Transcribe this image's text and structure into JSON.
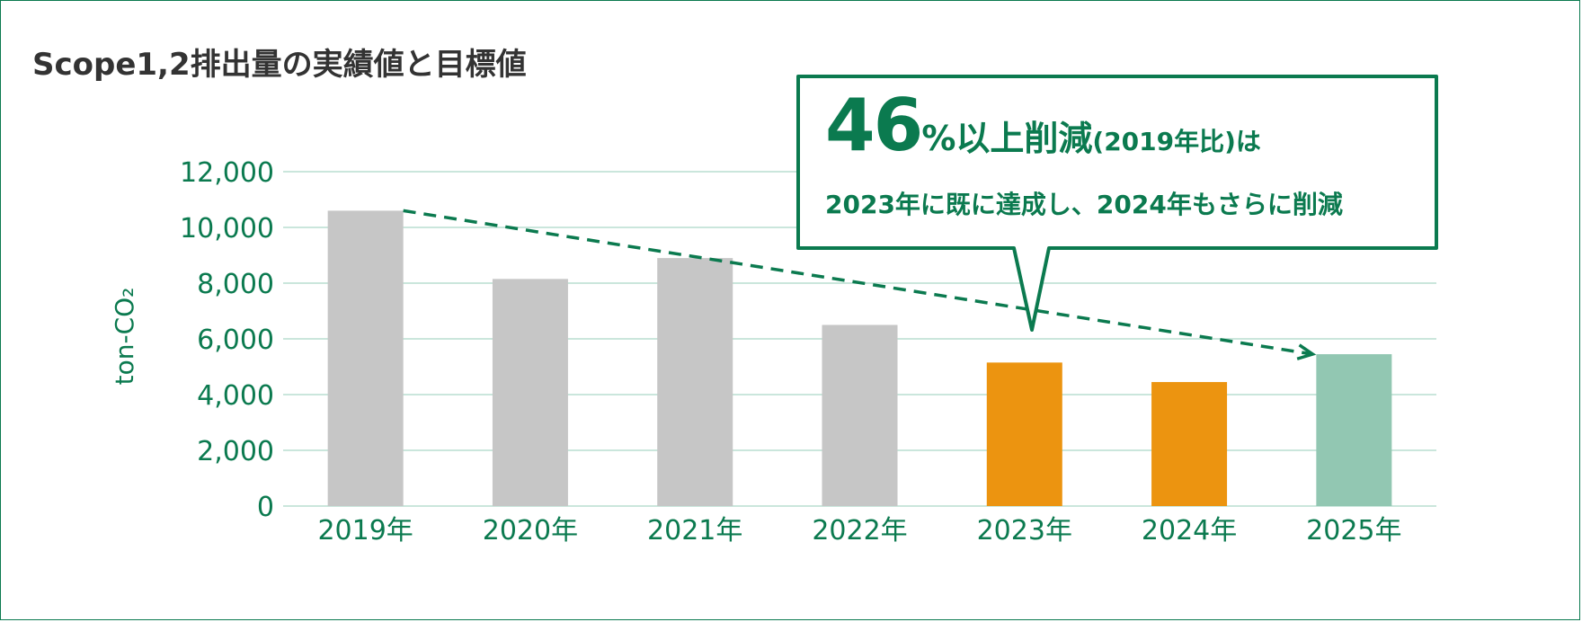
{
  "title": "Scope1,2排出量の実績値と目標値",
  "callout": {
    "big": "46",
    "mid": "%以上削減",
    "small": "(2019年比)は",
    "line2": "2023年に既に達成し、2024年もさらに削減"
  },
  "colors": {
    "accent": "#0b7a4f",
    "past": "#c6c6c6",
    "achieved": "#ec9410",
    "target": "#92c7b2",
    "grid": "#b9ddd0"
  },
  "chart_data": {
    "type": "bar",
    "categories": [
      "2019年",
      "2020年",
      "2021年",
      "2022年",
      "2023年",
      "2024年",
      "2025年"
    ],
    "values": [
      10600,
      8150,
      8900,
      6500,
      5150,
      4450,
      5450
    ],
    "bar_kinds": [
      "past",
      "past",
      "past",
      "past",
      "achieved",
      "achieved",
      "target"
    ],
    "ylabel": "ton-CO₂",
    "ylim": [
      0,
      12000
    ],
    "yticks": [
      0,
      2000,
      4000,
      6000,
      8000,
      10000,
      12000
    ],
    "ytick_labels": [
      "0",
      "2,000",
      "4,000",
      "6,000",
      "8,000",
      "10,000",
      "12,000"
    ],
    "trend_line": {
      "from": [
        "2019年",
        10600
      ],
      "to": [
        "2025年",
        5450
      ]
    },
    "grid": true,
    "legend": "none"
  }
}
